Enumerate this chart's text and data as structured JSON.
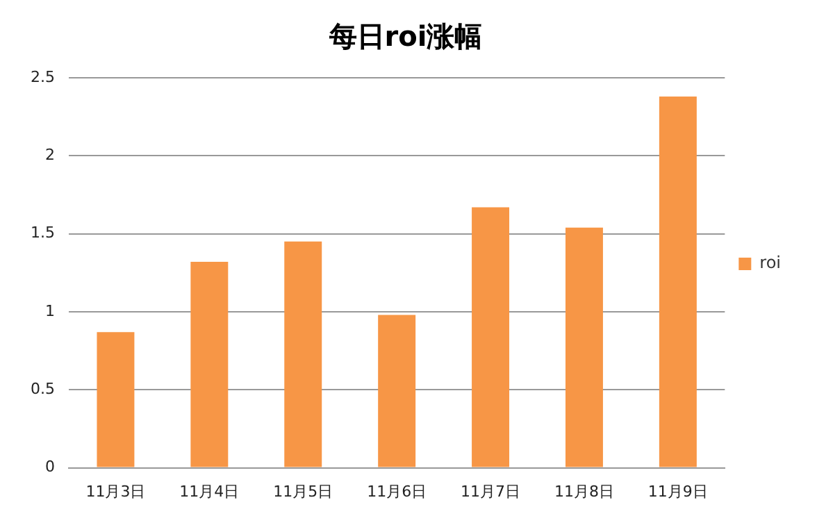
{
  "chart_data": {
    "type": "bar",
    "title": "每日roi涨幅",
    "categories": [
      "11月3日",
      "11月4日",
      "11月5日",
      "11月6日",
      "11月7日",
      "11月8日",
      "11月9日"
    ],
    "series": [
      {
        "name": "roi",
        "color": "#f79646",
        "values": [
          0.87,
          1.32,
          1.45,
          0.98,
          1.67,
          1.54,
          2.38
        ]
      }
    ],
    "ylim": [
      0,
      2.5
    ],
    "yticks": [
      0,
      0.5,
      1,
      1.5,
      2,
      2.5
    ],
    "grid": "y",
    "legend": "right"
  }
}
